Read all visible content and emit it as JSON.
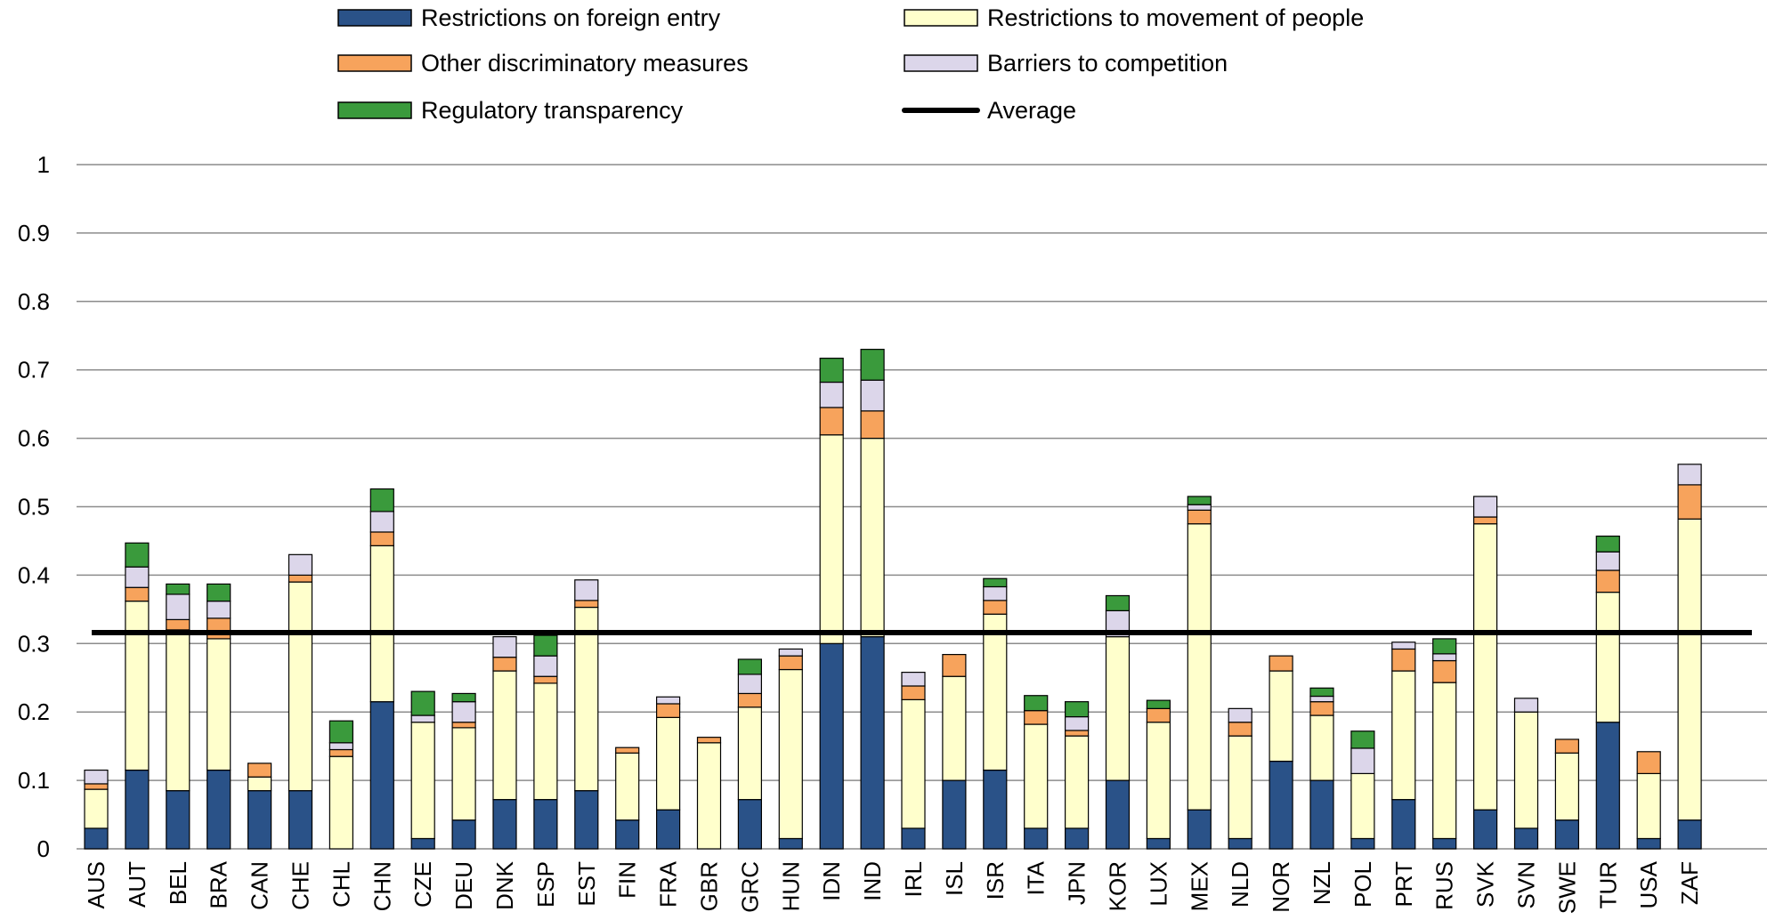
{
  "chart_data": {
    "type": "bar",
    "stacked": true,
    "categories": [
      "AUS",
      "AUT",
      "BEL",
      "BRA",
      "CAN",
      "CHE",
      "CHL",
      "CHN",
      "CZE",
      "DEU",
      "DNK",
      "ESP",
      "EST",
      "FIN",
      "FRA",
      "GBR",
      "GRC",
      "HUN",
      "IDN",
      "IND",
      "IRL",
      "ISL",
      "ISR",
      "ITA",
      "JPN",
      "KOR",
      "LUX",
      "MEX",
      "NLD",
      "NOR",
      "NZL",
      "POL",
      "PRT",
      "RUS",
      "SVK",
      "SVN",
      "SWE",
      "TUR",
      "USA",
      "ZAF"
    ],
    "series": [
      {
        "name": "Restrictions on foreign entry",
        "color": "#2a5288",
        "values": [
          0.03,
          0.115,
          0.085,
          0.115,
          0.085,
          0.085,
          0.0,
          0.215,
          0.015,
          0.042,
          0.072,
          0.072,
          0.085,
          0.042,
          0.057,
          0.0,
          0.072,
          0.015,
          0.3,
          0.31,
          0.03,
          0.1,
          0.115,
          0.03,
          0.03,
          0.1,
          0.015,
          0.057,
          0.015,
          0.128,
          0.1,
          0.015,
          0.072,
          0.015,
          0.057,
          0.03,
          0.042,
          0.185,
          0.015,
          0.042
        ]
      },
      {
        "name": "Restrictions to movement of people",
        "color": "#ffffcc",
        "values": [
          0.057,
          0.247,
          0.235,
          0.192,
          0.02,
          0.305,
          0.135,
          0.228,
          0.17,
          0.135,
          0.188,
          0.17,
          0.268,
          0.098,
          0.135,
          0.155,
          0.135,
          0.247,
          0.305,
          0.29,
          0.188,
          0.152,
          0.228,
          0.152,
          0.135,
          0.21,
          0.17,
          0.418,
          0.15,
          0.132,
          0.095,
          0.095,
          0.188,
          0.228,
          0.418,
          0.17,
          0.098,
          0.19,
          0.095,
          0.44
        ]
      },
      {
        "name": "Other discriminatory measures",
        "color": "#f7a35c",
        "values": [
          0.008,
          0.02,
          0.015,
          0.03,
          0.02,
          0.01,
          0.01,
          0.02,
          0.0,
          0.008,
          0.02,
          0.01,
          0.01,
          0.008,
          0.02,
          0.008,
          0.02,
          0.02,
          0.04,
          0.04,
          0.02,
          0.032,
          0.02,
          0.02,
          0.008,
          0.0,
          0.02,
          0.02,
          0.02,
          0.022,
          0.02,
          0.0,
          0.032,
          0.032,
          0.01,
          0.0,
          0.02,
          0.032,
          0.032,
          0.05
        ]
      },
      {
        "name": "Barriers to competition",
        "color": "#dcd6ea",
        "values": [
          0.02,
          0.03,
          0.037,
          0.025,
          0.0,
          0.03,
          0.01,
          0.03,
          0.01,
          0.03,
          0.03,
          0.03,
          0.03,
          0.0,
          0.01,
          0.0,
          0.028,
          0.01,
          0.037,
          0.045,
          0.02,
          0.0,
          0.02,
          0.0,
          0.02,
          0.038,
          0.0,
          0.008,
          0.02,
          0.0,
          0.008,
          0.037,
          0.01,
          0.01,
          0.03,
          0.02,
          0.0,
          0.027,
          0.0,
          0.03
        ]
      },
      {
        "name": "Regulatory transparency",
        "color": "#3a9a3c",
        "values": [
          0.0,
          0.035,
          0.015,
          0.025,
          0.0,
          0.0,
          0.032,
          0.033,
          0.035,
          0.012,
          0.0,
          0.03,
          0.0,
          0.0,
          0.0,
          0.0,
          0.022,
          0.0,
          0.035,
          0.045,
          0.0,
          0.0,
          0.012,
          0.022,
          0.022,
          0.022,
          0.012,
          0.012,
          0.0,
          0.0,
          0.012,
          0.025,
          0.0,
          0.022,
          0.0,
          0.0,
          0.0,
          0.023,
          0.0,
          0.0
        ]
      }
    ],
    "average": {
      "name": "Average",
      "value": 0.316
    },
    "ylim": [
      0,
      1
    ],
    "yticks": [
      "0",
      "0.1",
      "0.2",
      "0.3",
      "0.4",
      "0.5",
      "0.6",
      "0.7",
      "0.8",
      "0.9",
      "1"
    ],
    "xlabel": "",
    "ylabel": "",
    "title": "",
    "grid": true,
    "legend_position": "top"
  }
}
